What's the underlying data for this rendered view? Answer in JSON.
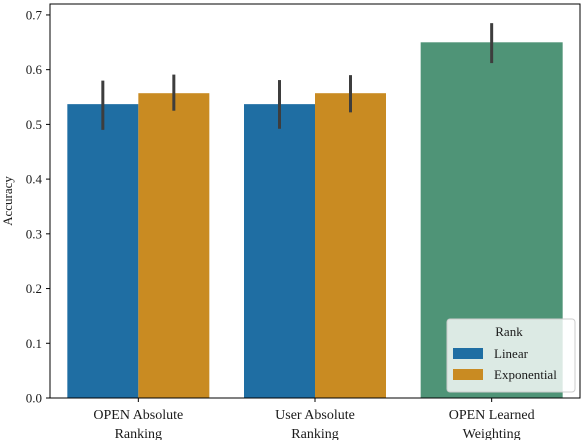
{
  "chart_data": {
    "type": "bar",
    "ylabel": "Accuracy",
    "xlabel": "",
    "ylim": [
      0,
      0.72
    ],
    "yticks": [
      0.0,
      0.1,
      0.2,
      0.3,
      0.4,
      0.5,
      0.6,
      0.7
    ],
    "ytick_labels": [
      "0.0",
      "0.1",
      "0.2",
      "0.3",
      "0.4",
      "0.5",
      "0.6",
      "0.7"
    ],
    "grid": false,
    "legend": {
      "title": "Rank",
      "placement": "bottom-right",
      "entries": [
        {
          "label": "Linear",
          "color": "#1f6ea3"
        },
        {
          "label": "Exponential",
          "color": "#c98b22"
        }
      ]
    },
    "groups": [
      {
        "label": [
          "OPEN Absolute",
          "Ranking"
        ],
        "bars": [
          {
            "series": "Linear",
            "value": 0.537,
            "err_low": 0.49,
            "err_high": 0.58,
            "color": "#1f6ea3"
          },
          {
            "series": "Exponential",
            "value": 0.557,
            "err_low": 0.525,
            "err_high": 0.591,
            "color": "#c98b22"
          }
        ]
      },
      {
        "label": [
          "User Absolute",
          "Ranking"
        ],
        "bars": [
          {
            "series": "Linear",
            "value": 0.537,
            "err_low": 0.492,
            "err_high": 0.581,
            "color": "#1f6ea3"
          },
          {
            "series": "Exponential",
            "value": 0.557,
            "err_low": 0.522,
            "err_high": 0.59,
            "color": "#c98b22"
          }
        ]
      },
      {
        "label": [
          "OPEN Learned",
          "Weighting"
        ],
        "bars": [
          {
            "series": "",
            "value": 0.65,
            "err_low": 0.612,
            "err_high": 0.685,
            "color": "#4f9477"
          }
        ]
      }
    ]
  }
}
